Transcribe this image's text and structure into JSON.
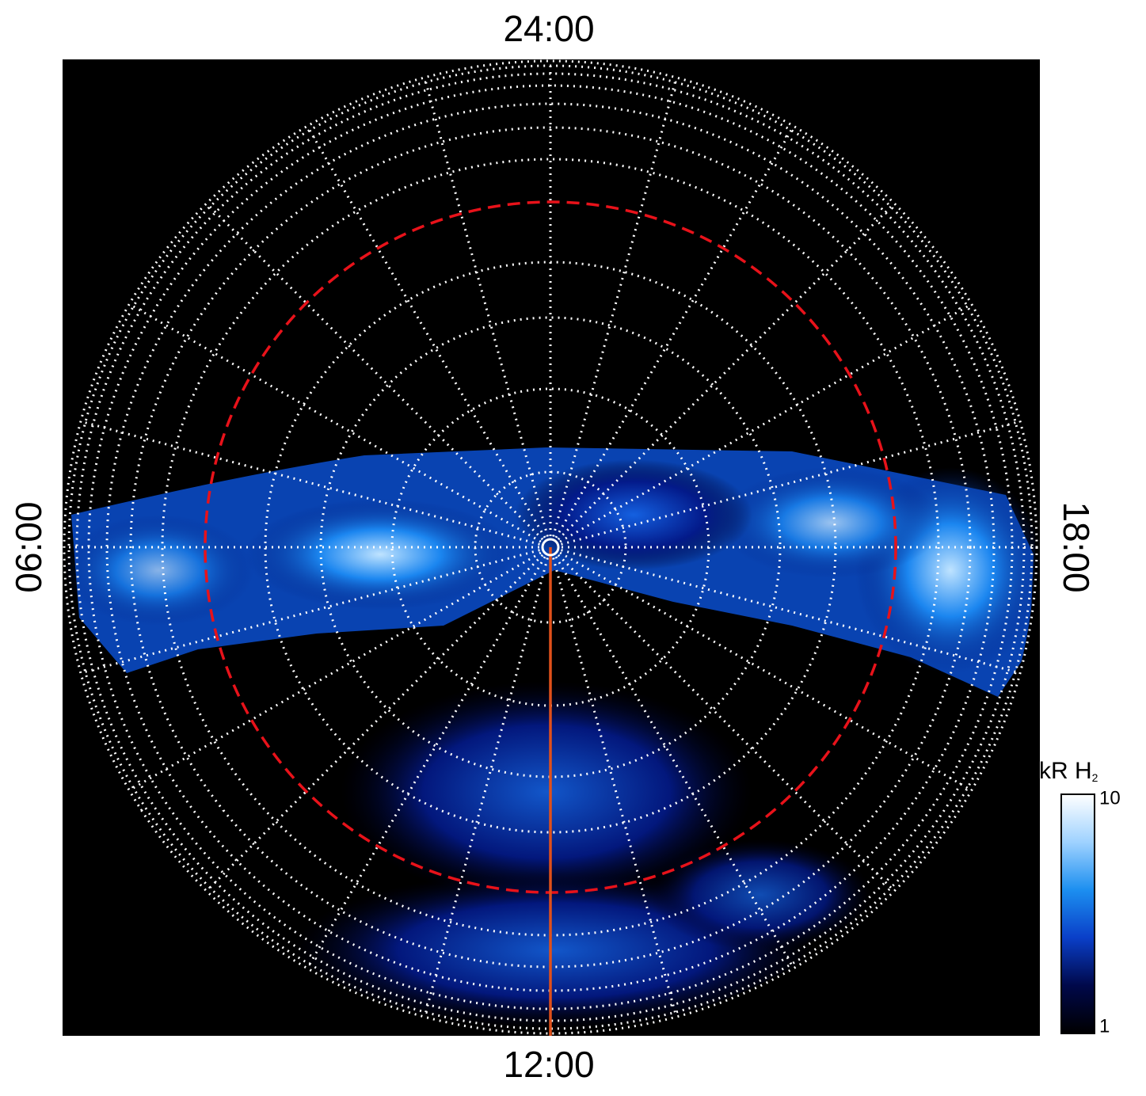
{
  "labels": {
    "top": "24:00",
    "bottom": "12:00",
    "left": "06:00",
    "right": "18:00"
  },
  "colorbar": {
    "title": "kR H",
    "title_sub": "2",
    "log": true,
    "lim": [
      1,
      10
    ],
    "ticks": [
      1,
      10
    ],
    "colors": [
      "#000000",
      "#00084a",
      "#0a3fc8",
      "#1c8ff0",
      "#9fd2ff",
      "#ffffff"
    ]
  }
}
